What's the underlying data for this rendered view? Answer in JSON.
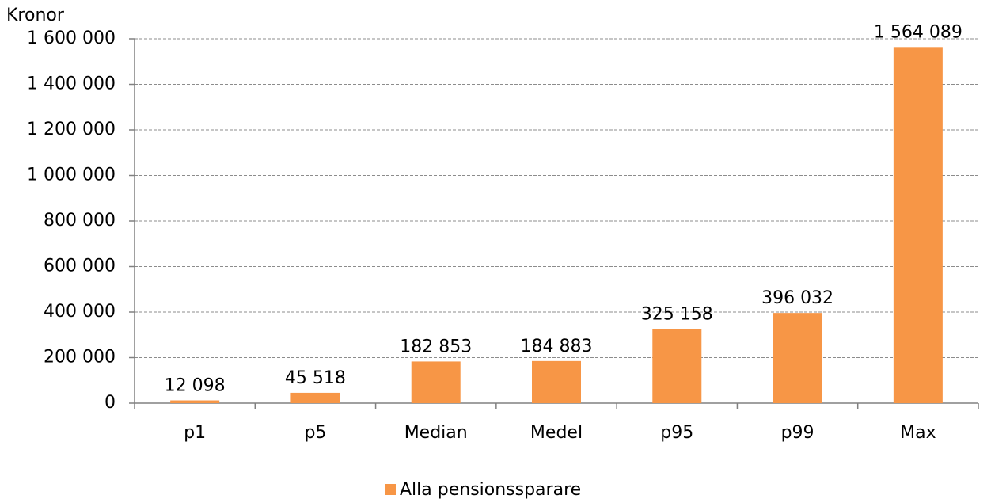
{
  "chart_data": {
    "type": "bar",
    "y_label": "Kronor",
    "categories": [
      "p1",
      "p5",
      "Median",
      "Medel",
      "p95",
      "p99",
      "Max"
    ],
    "series": [
      {
        "name": "Alla pensionssparare",
        "color": "#f79646",
        "values": [
          12098,
          45518,
          182853,
          184883,
          325158,
          396032,
          1564089
        ],
        "value_labels": [
          "12 098",
          "45 518",
          "182 853",
          "184 883",
          "325 158",
          "396 032",
          "1 564 089"
        ]
      }
    ],
    "ylim": [
      0,
      1600000
    ],
    "yticks": [
      0,
      {
        "value": 200000,
        "label": "200 000"
      },
      {
        "value": 400000,
        "label": "400 000"
      },
      {
        "value": 600000,
        "label": "600 000"
      },
      {
        "value": 800000,
        "label": "800 000"
      },
      {
        "value": 1000000,
        "label": "1 000 000"
      },
      {
        "value": 1200000,
        "label": "1 200 000"
      },
      {
        "value": 1400000,
        "label": "1 400 000"
      },
      {
        "value": 1600000,
        "label": "1 600 000"
      }
    ],
    "grid": true,
    "legend": "bottom"
  }
}
